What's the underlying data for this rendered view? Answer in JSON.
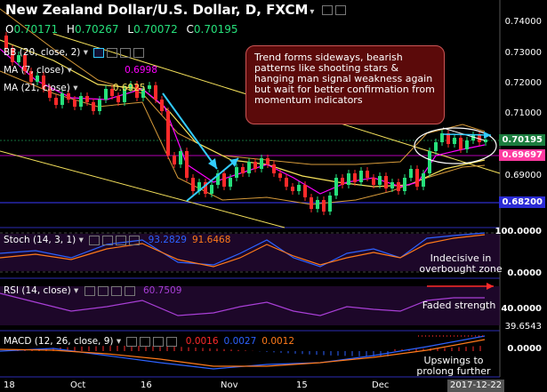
{
  "header": {
    "title": "New Zealand Dollar/U.S. Dollar, D, FXCM",
    "ohlc": {
      "o_label": "O",
      "o": "0.70171",
      "h_label": "H",
      "h": "0.70267",
      "l_label": "L",
      "l": "0.70072",
      "c_label": "C",
      "c": "0.70195"
    }
  },
  "indicators": {
    "bb": {
      "label": "BB (20, close, 2)"
    },
    "ma7": {
      "label": "MA (7, close)",
      "value": "0.6998"
    },
    "ma21": {
      "label": "MA (21, close)",
      "value": "0.6925"
    },
    "stoch": {
      "label": "Stoch (14, 3, 1)",
      "k": "93.2829",
      "d": "91.6468"
    },
    "rsi": {
      "label": "RSI (14, close)",
      "value": "60.7509"
    },
    "macd": {
      "label": "MACD (12, 26, close, 9)",
      "hist": "0.0016",
      "macd": "0.0027",
      "signal": "0.0012"
    }
  },
  "price_axis": [
    "0.74000",
    "0.73000",
    "0.72000",
    "0.71000",
    "0.69000",
    "0.68200"
  ],
  "price_tags": {
    "last": "0.70195",
    "bb": "0.69697"
  },
  "stoch_axis": [
    "100.0000",
    "0.0000"
  ],
  "rsi_axis": [
    "40.0000"
  ],
  "rsi_partial": "39.6543",
  "macd_axis": [
    "0.0000"
  ],
  "x_axis": [
    "18",
    "Oct",
    "16",
    "Nov",
    "15",
    "Dec"
  ],
  "x_current": "2017-12-22",
  "callout": "Trend forms sideways, bearish patterns like shooting stars & hanging man signal weakness again but wait for better confirmation from momentum indicators",
  "notes": {
    "stoch": "Indecisive in overbought zone",
    "rsi": "Faded strength",
    "macd": "Upswings to prolong further"
  },
  "colors": {
    "bull": "#26e07b",
    "bear": "#ff2a2a",
    "ma7": "#ff00ff",
    "ma21": "#f5e15b",
    "trend": "#33ccff",
    "bb": "#d69a3a"
  }
}
